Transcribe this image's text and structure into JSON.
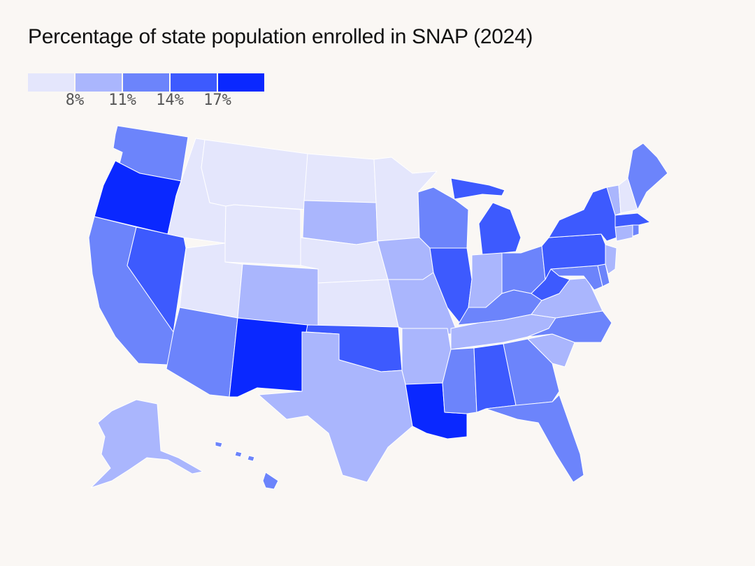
{
  "title": "Percentage of state population enrolled in SNAP (2024)",
  "legend": {
    "ticks": [
      "8%",
      "11%",
      "14%",
      "17%"
    ],
    "bins": [
      "#e4e6fc",
      "#aab6fd",
      "#6c84fb",
      "#3d5afe",
      "#0a28ff"
    ]
  },
  "map_data": {
    "type": "choropleth",
    "units": "percent",
    "bin_thresholds": [
      8,
      11,
      14,
      17
    ],
    "states": [
      {
        "id": "WA",
        "bin": 2
      },
      {
        "id": "OR",
        "bin": 4
      },
      {
        "id": "CA",
        "bin": 2
      },
      {
        "id": "NV",
        "bin": 3
      },
      {
        "id": "ID",
        "bin": 0
      },
      {
        "id": "MT",
        "bin": 0
      },
      {
        "id": "WY",
        "bin": 0
      },
      {
        "id": "UT",
        "bin": 0
      },
      {
        "id": "AZ",
        "bin": 2
      },
      {
        "id": "CO",
        "bin": 1
      },
      {
        "id": "NM",
        "bin": 4
      },
      {
        "id": "ND",
        "bin": 0
      },
      {
        "id": "SD",
        "bin": 1
      },
      {
        "id": "NE",
        "bin": 0
      },
      {
        "id": "KS",
        "bin": 0
      },
      {
        "id": "OK",
        "bin": 3
      },
      {
        "id": "TX",
        "bin": 1
      },
      {
        "id": "MN",
        "bin": 0
      },
      {
        "id": "IA",
        "bin": 1
      },
      {
        "id": "MO",
        "bin": 1
      },
      {
        "id": "AR",
        "bin": 1
      },
      {
        "id": "LA",
        "bin": 4
      },
      {
        "id": "WI",
        "bin": 2
      },
      {
        "id": "IL",
        "bin": 3
      },
      {
        "id": "MI",
        "bin": 3
      },
      {
        "id": "IN",
        "bin": 1
      },
      {
        "id": "OH",
        "bin": 2
      },
      {
        "id": "KY",
        "bin": 2
      },
      {
        "id": "TN",
        "bin": 1
      },
      {
        "id": "MS",
        "bin": 2
      },
      {
        "id": "AL",
        "bin": 3
      },
      {
        "id": "GA",
        "bin": 2
      },
      {
        "id": "FL",
        "bin": 2
      },
      {
        "id": "SC",
        "bin": 1
      },
      {
        "id": "NC",
        "bin": 2
      },
      {
        "id": "VA",
        "bin": 1
      },
      {
        "id": "WV",
        "bin": 3
      },
      {
        "id": "MD",
        "bin": 2
      },
      {
        "id": "DE",
        "bin": 2
      },
      {
        "id": "NJ",
        "bin": 1
      },
      {
        "id": "PA",
        "bin": 3
      },
      {
        "id": "NY",
        "bin": 3
      },
      {
        "id": "CT",
        "bin": 1
      },
      {
        "id": "RI",
        "bin": 2
      },
      {
        "id": "MA",
        "bin": 3
      },
      {
        "id": "VT",
        "bin": 1
      },
      {
        "id": "NH",
        "bin": 0
      },
      {
        "id": "ME",
        "bin": 2
      },
      {
        "id": "AK",
        "bin": 1
      },
      {
        "id": "HI",
        "bin": 2
      }
    ]
  }
}
